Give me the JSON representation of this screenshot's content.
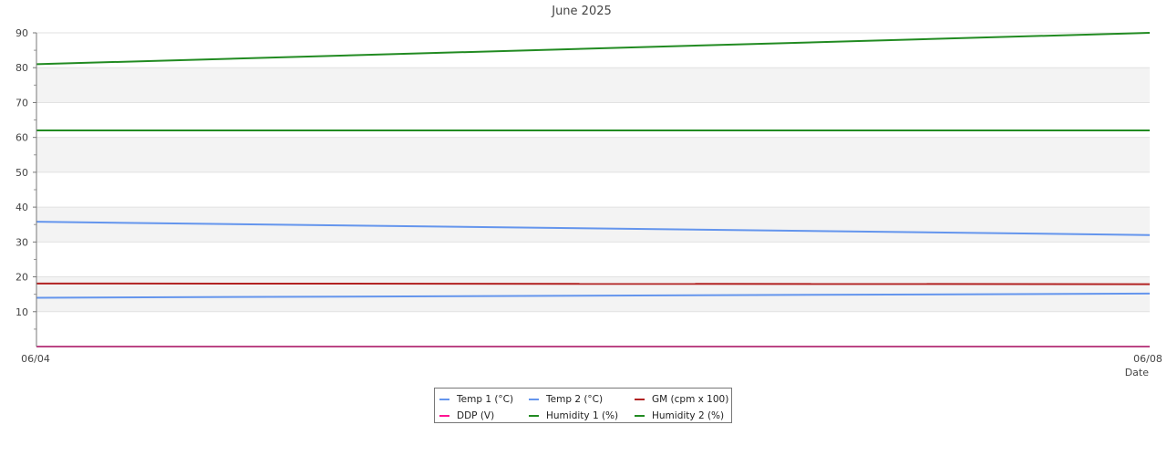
{
  "chart_data": {
    "type": "line",
    "title": "June 2025",
    "xlabel": "Date",
    "ylabel": "",
    "x": [
      "06/04",
      "06/08"
    ],
    "x_tick_labels": [
      "06/04",
      "06/08"
    ],
    "ylim": [
      0,
      90
    ],
    "y_ticks": [
      10,
      20,
      30,
      40,
      50,
      60,
      70,
      80,
      90
    ],
    "grid": true,
    "banded_background": true,
    "legend_position": "bottom",
    "series": [
      {
        "name": "Temp 1 (°C)",
        "color": "#6495ed",
        "values": [
          14.0,
          15.2
        ]
      },
      {
        "name": "Temp 2 (°C)",
        "color": "#6495ed",
        "values": [
          35.8,
          32.0
        ]
      },
      {
        "name": "GM (cpm x 100)",
        "color": "#b22222",
        "values": [
          18.1,
          17.9
        ]
      },
      {
        "name": "DDP (V)",
        "color": "#ff1493",
        "values": [
          0,
          0
        ]
      },
      {
        "name": "Humidity 1 (%)",
        "color": "#228b22",
        "values": [
          62,
          62
        ]
      },
      {
        "name": "Humidity 2 (%)",
        "color": "#228b22",
        "values": [
          81,
          90
        ]
      }
    ]
  }
}
